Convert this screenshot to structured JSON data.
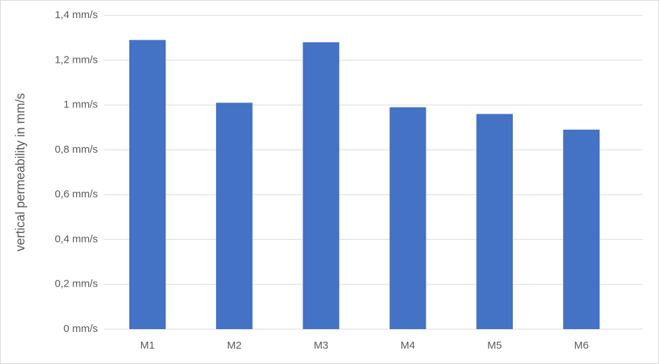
{
  "chart_data": {
    "type": "bar",
    "y_axis_label": "vertical permeability in mm/s",
    "categories": [
      "M1",
      "M2",
      "M3",
      "M4",
      "M5",
      "M6"
    ],
    "values": [
      1.29,
      1.01,
      1.28,
      0.99,
      0.96,
      0.89
    ],
    "color": "#4472c4",
    "ylim": [
      0,
      1.4
    ],
    "yticks": [
      {
        "value": 0,
        "label": "0 mm/s"
      },
      {
        "value": 0.2,
        "label": "0,2 mm/s"
      },
      {
        "value": 0.4,
        "label": "0,4 mm/s"
      },
      {
        "value": 0.6,
        "label": "0,6 mm/s"
      },
      {
        "value": 0.8,
        "label": "0,8 mm/s"
      },
      {
        "value": 1,
        "label": "1 mm/s"
      },
      {
        "value": 1.2,
        "label": "1,2 mm/s"
      },
      {
        "value": 1.4,
        "label": "1,4 mm/s"
      }
    ],
    "grid": true
  }
}
